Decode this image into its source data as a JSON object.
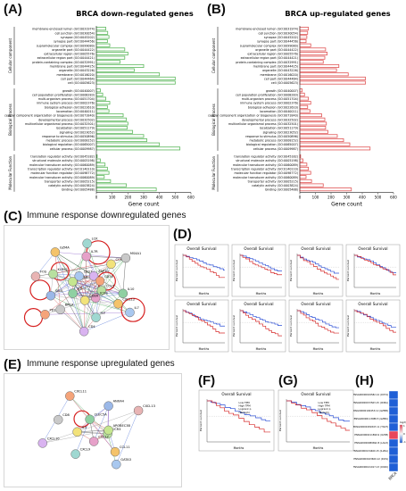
{
  "panels": {
    "A": "(A)",
    "B": "(B)",
    "C": "(C)",
    "D": "(D)",
    "E": "(E)",
    "F": "(F)",
    "G": "(G)",
    "H": "(H)"
  },
  "chart_data": [
    {
      "type": "bar",
      "orientation": "horizontal",
      "title": "BRCA down-regulated genes",
      "xlabel": "Gene count",
      "xlim": [
        0,
        600
      ],
      "xticks": [
        0,
        100,
        200,
        300,
        400,
        500,
        600
      ],
      "color": "#5cb85c",
      "groups": [
        {
          "name": "Cellular component",
          "categories": [
            "membrane-enclosed lumen (GO:0031974)",
            "cell junction (GO:0030054)",
            "synapse (GO:0045202)",
            "synapse part (GO:0044456)",
            "supramolecular complex (GO:0099080)",
            "organelle part (GO:0044422)",
            "extracellular region (GO:0005576)",
            "extracellular region part (GO:0044421)",
            "protein-containing complex (GO:0032991)",
            "membrane part (GO:0044425)",
            "organelle (GO:0043226)",
            "membrane (GO:0016020)",
            "cell part (GO:0044464)",
            "cell (GO:0005623)"
          ],
          "values": [
            60,
            72,
            80,
            70,
            85,
            180,
            200,
            180,
            150,
            300,
            240,
            400,
            500,
            500
          ]
        },
        {
          "name": "Biological Process",
          "categories": [
            "growth (GO:0040007)",
            "cell population proliferation (GO:0008283)",
            "multi-organism process (GO:0051704)",
            "immune system process (GO:0002376)",
            "biological adhesion (GO:0022610)",
            "locomotion (GO:0040011)",
            "cellular component organization or biogenesis (GO:0071840)",
            "developmental process (GO:0032502)",
            "multicellular organismal process (GO:0032501)",
            "localization (GO:0051179)",
            "signaling (GO:0023052)",
            "response to stimulus (GO:0050896)",
            "metabolic process (GO:0008152)",
            "biological regulation (GO:0065007)",
            "cellular process (GO:0009987)"
          ],
          "values": [
            25,
            40,
            60,
            85,
            70,
            80,
            170,
            190,
            200,
            195,
            230,
            300,
            320,
            400,
            530
          ]
        },
        {
          "name": "Molecular Function",
          "categories": [
            "translation regulator activity (GO:0045182)",
            "structural molecule activity (GO:0005198)",
            "molecular transducer activity (GO:0060089)",
            "transcription regulator activity (GO:0140110)",
            "molecular function regulator (GO:0098772)",
            "molecular transducer activity (GO:0060089)",
            "transporter activity (GO:0005215)",
            "catalytic activity (GO:0003824)",
            "binding (GO:0005488)"
          ],
          "values": [
            5,
            25,
            55,
            70,
            80,
            50,
            90,
            190,
            380
          ]
        }
      ]
    },
    {
      "type": "bar",
      "orientation": "horizontal",
      "title": "BRCA up-regulated genes",
      "xlabel": "Gene count",
      "xlim": [
        0,
        600
      ],
      "xticks": [
        0,
        100,
        200,
        300,
        400,
        500,
        600
      ],
      "color": "#e05555",
      "groups": [
        {
          "name": "Cellular component",
          "categories": [
            "membrane-enclosed lumen (GO:0031974)",
            "cell junction (GO:0030054)",
            "synapse (GO:0045202)",
            "synapse part (GO:0044456)",
            "supramolecular complex (GO:0099080)",
            "organelle part (GO:0044422)",
            "extracellular region (GO:0005576)",
            "extracellular region part (GO:0044421)",
            "protein-containing complex (GO:0032991)",
            "membrane part (GO:0044425)",
            "organelle (GO:0043226)",
            "membrane (GO:0016020)",
            "cell part (GO:0044464)",
            "cell (GO:0005623)"
          ],
          "values": [
            55,
            50,
            45,
            40,
            70,
            165,
            175,
            160,
            150,
            250,
            235,
            310,
            420,
            420
          ]
        },
        {
          "name": "Biological Process",
          "categories": [
            "growth (GO:0040007)",
            "cell population proliferation (GO:0008283)",
            "multi-organism process (GO:0051704)",
            "immune system process (GO:0002376)",
            "biological adhesion (GO:0022610)",
            "locomotion (GO:0040011)",
            "cellular component organization or biogenesis (GO:0071840)",
            "developmental process (GO:0032502)",
            "multicellular organismal process (GO:0032501)",
            "localization (GO:0051179)",
            "signaling (GO:0023052)",
            "response to stimulus (GO:0050896)",
            "metabolic process (GO:0008152)",
            "biological regulation (GO:0065007)",
            "cellular process (GO:0009987)"
          ],
          "values": [
            15,
            30,
            55,
            70,
            50,
            65,
            140,
            160,
            170,
            165,
            180,
            240,
            280,
            320,
            450
          ]
        },
        {
          "name": "Molecular Function",
          "categories": [
            "translation regulator activity (GO:0045182)",
            "structural molecule activity (GO:0005198)",
            "molecular transducer activity (GO:0060089)",
            "transcription regulator activity (GO:0140110)",
            "molecular function regulator (GO:0098772)",
            "molecular transducer activity (GO:0060089)",
            "transporter activity (GO:0005215)",
            "catalytic activity (GO:0003824)",
            "binding (GO:0005488)"
          ],
          "values": [
            5,
            20,
            45,
            55,
            70,
            40,
            75,
            150,
            330
          ]
        }
      ]
    }
  ],
  "network_c": {
    "title": "Immune response downregulated genes",
    "nodes": [
      "CCL5",
      "CXCL12",
      "IL7",
      "ICOS",
      "IL2",
      "CD4",
      "CD8A",
      "BRCA",
      "PD1",
      "IL6",
      "SELL",
      "FOS",
      "CCL19",
      "KLRK1",
      "GZMA",
      "CD27",
      "IL7R",
      "LCK",
      "ZAP70",
      "CCR7",
      "MS4A1",
      "CD3E",
      "IL10"
    ]
  },
  "network_e": {
    "title": "Immune response upregulated genes",
    "nodes": [
      "CCR3",
      "CCL11",
      "GATA3",
      "CCL17",
      "CXCL9",
      "CXCL10",
      "IL3",
      "CD8",
      "CXCL11",
      "CLEC5A",
      "ANXA4",
      "CXCL13",
      "APOBEC3B"
    ]
  },
  "survival": {
    "title": "Overall Survival",
    "xlabel": "Months",
    "ylabel": "Percent survival",
    "f_legend": [
      "Low TPM",
      "High TPM",
      "Logrank p",
      "HR(high)"
    ],
    "g_legend": [
      "Low TPM",
      "High TPM",
      "Logrank p",
      "HR(high)"
    ]
  },
  "heatmap_h": {
    "rows": [
      "ENSG00000019582.14 (CD74)",
      "ENSG00000153563.15 (CD8A)",
      "ENSG00000100453.12 (GZMB)",
      "ENSG00000113088.5 (GZMK)",
      "ENSG00000181847.11 (TIGIT)",
      "ENSG00000211899.9 (IGHM)",
      "ENSG00000089692.8 (LAG3)",
      "ENSG00000134460.15 (IL2RA)",
      "ENSG00000163600.12 (ICOS)",
      "ENSG00000101017.13 (CD40)"
    ],
    "values": [
      -0.55,
      -0.6,
      -0.5,
      -0.7,
      -0.45,
      0.8,
      -0.55,
      -0.6,
      -0.5,
      -0.65
    ],
    "column": "BRCA",
    "legend_title": "log2(FC)",
    "legend_ticks": [
      "1",
      "0",
      "-1"
    ],
    "low_color": "#1f5fd6",
    "high_color": "#e8475a"
  }
}
